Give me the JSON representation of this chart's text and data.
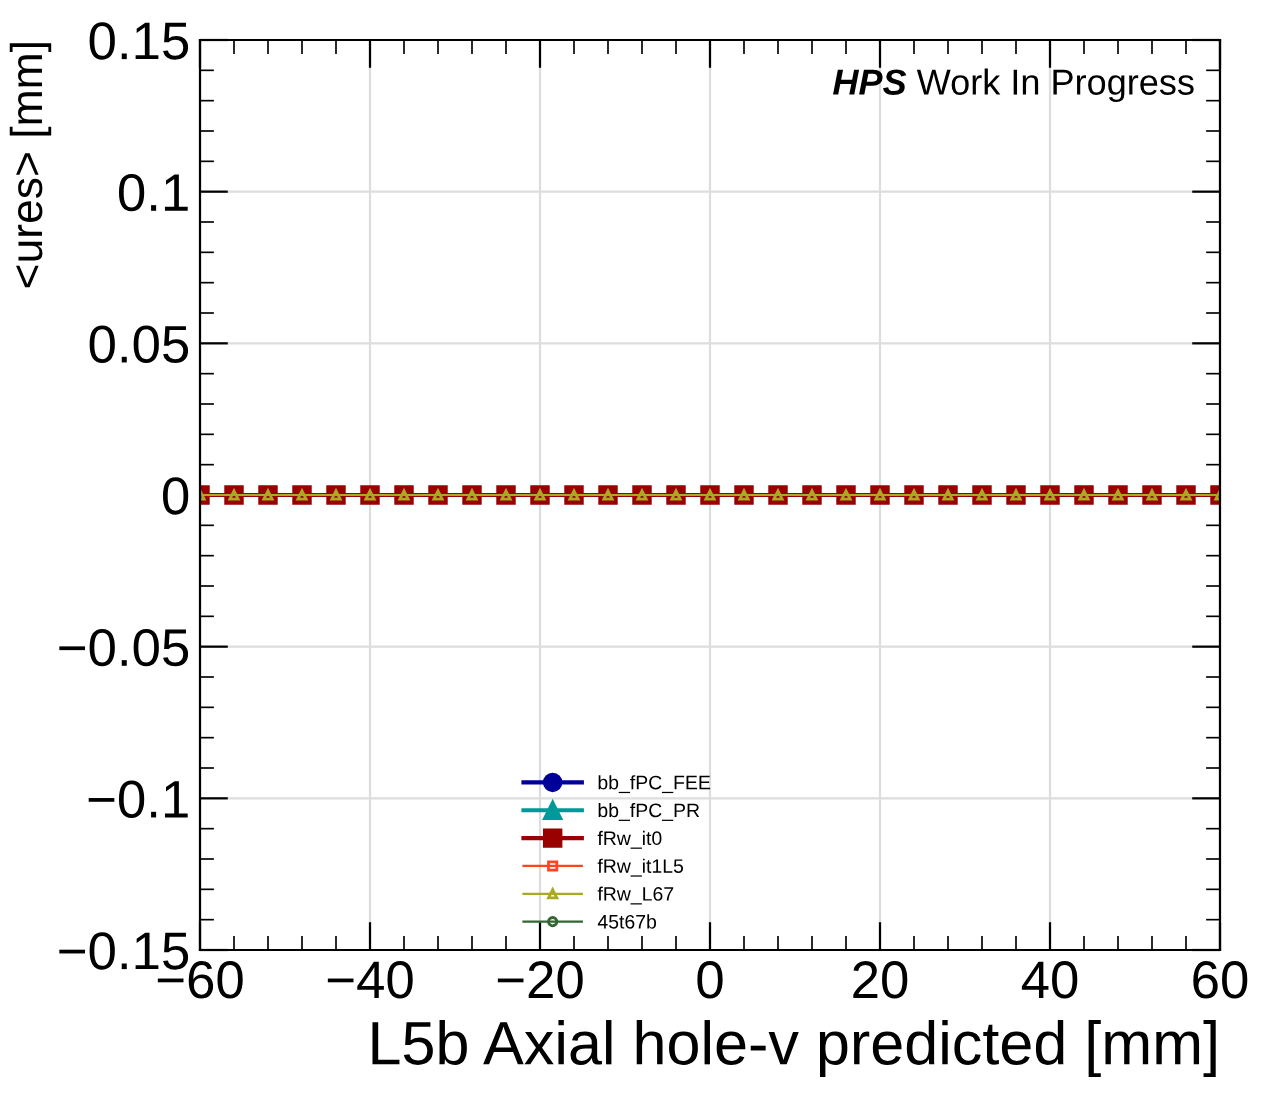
{
  "chart_data": {
    "type": "line",
    "xlabel": "L5b Axial hole-v predicted [mm]",
    "ylabel": "<ures> [mm]",
    "annotations": [
      "HPS",
      "Work In Progress"
    ],
    "x": [
      -60,
      -56,
      -52,
      -48,
      -44,
      -40,
      -36,
      -32,
      -28,
      -24,
      -20,
      -16,
      -12,
      -8,
      -4,
      0,
      4,
      8,
      12,
      16,
      20,
      24,
      28,
      32,
      36,
      40,
      44,
      48,
      52,
      56,
      60
    ],
    "series": [
      {
        "name": "bb_fPC_FEE",
        "color": "#000099",
        "marker": "circle",
        "values": [
          null,
          null,
          null,
          null,
          null,
          null,
          null,
          null,
          null,
          null,
          null,
          null,
          null,
          null,
          null,
          null,
          null,
          null,
          null,
          null,
          null,
          null,
          null,
          null,
          null,
          null,
          null,
          null,
          null,
          null,
          null
        ]
      },
      {
        "name": "bb_fPC_PR",
        "color": "#009999",
        "marker": "triangle",
        "values": [
          null,
          null,
          null,
          null,
          null,
          null,
          null,
          null,
          null,
          null,
          null,
          null,
          null,
          null,
          null,
          null,
          null,
          null,
          null,
          null,
          null,
          null,
          null,
          null,
          null,
          null,
          null,
          null,
          null,
          null,
          null
        ]
      },
      {
        "name": "fRw_it0",
        "color": "#990000",
        "marker": "square",
        "values": [
          0,
          0,
          0,
          0,
          0,
          0,
          0,
          0,
          0,
          0,
          0,
          0,
          0,
          0,
          0,
          0,
          0,
          0,
          0,
          0,
          0,
          0,
          0,
          0,
          0,
          0,
          0,
          0,
          0,
          0,
          0
        ]
      },
      {
        "name": "fRw_it1L5",
        "color": "#ff4422",
        "marker": "square",
        "values": [
          null,
          null,
          null,
          null,
          null,
          null,
          null,
          null,
          null,
          null,
          null,
          null,
          null,
          null,
          null,
          null,
          null,
          null,
          null,
          null,
          null,
          null,
          null,
          null,
          null,
          null,
          null,
          null,
          null,
          null,
          null
        ]
      },
      {
        "name": "fRw_L67",
        "color": "#aaaa22",
        "marker": "triangle",
        "values": [
          0,
          0,
          0,
          0,
          0,
          0,
          0,
          0,
          0,
          0,
          0,
          0,
          0,
          0,
          0,
          0,
          0,
          0,
          0,
          0,
          0,
          0,
          0,
          0,
          0,
          0,
          0,
          0,
          0,
          0,
          0
        ]
      },
      {
        "name": "45t67b",
        "color": "#336633",
        "marker": "circle",
        "values": [
          null,
          null,
          null,
          null,
          null,
          null,
          null,
          null,
          null,
          null,
          null,
          null,
          null,
          null,
          null,
          null,
          null,
          null,
          null,
          null,
          null,
          null,
          null,
          null,
          null,
          null,
          null,
          null,
          null,
          null,
          null
        ]
      }
    ],
    "xlim": [
      -60,
      60
    ],
    "ylim": [
      -0.15,
      0.15
    ],
    "xticks": [
      {
        "value": -60,
        "label": "−60"
      },
      {
        "value": -40,
        "label": "−40"
      },
      {
        "value": -20,
        "label": "−20"
      },
      0,
      20,
      40,
      60
    ],
    "yticks": [
      {
        "value": -0.15,
        "label": "−0.15"
      },
      {
        "value": -0.1,
        "label": "−0.1"
      },
      {
        "value": -0.05,
        "label": "−0.05"
      },
      0,
      0.05,
      0.1,
      0.15
    ],
    "grid": true,
    "legend": "bottom left",
    "line_style": "solid"
  }
}
